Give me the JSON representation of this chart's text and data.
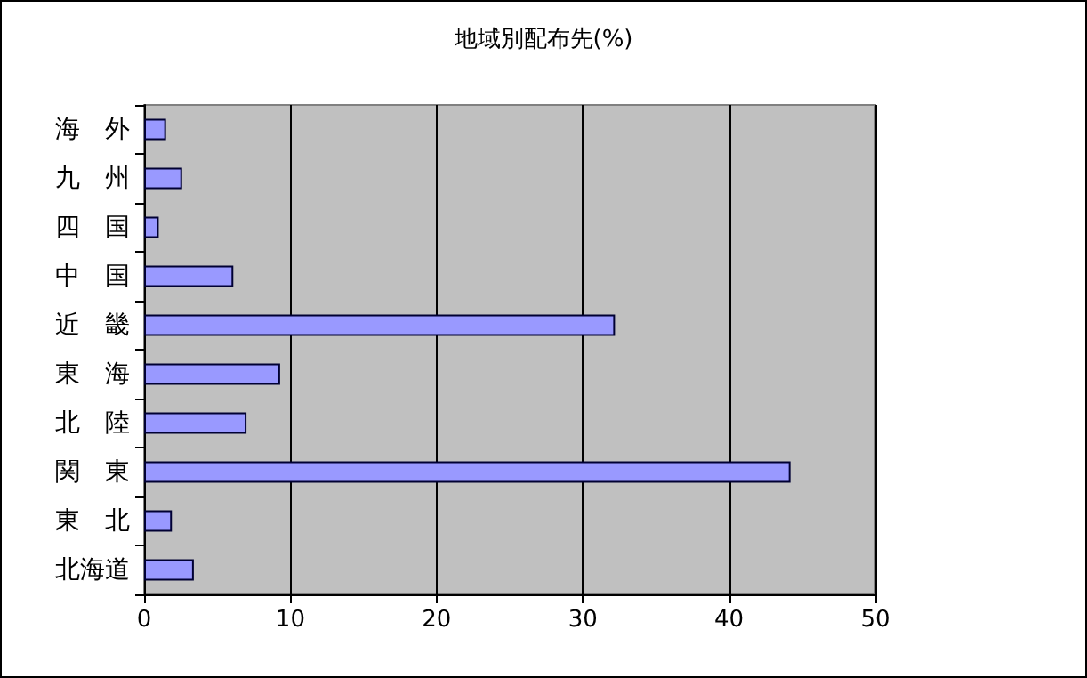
{
  "chart_data": {
    "type": "bar",
    "orientation": "horizontal",
    "title": "地域別配布先(%)",
    "categories": [
      "海　外",
      "九　州",
      "四　国",
      "中　国",
      "近　畿",
      "東　海",
      "北　陸",
      "関　東",
      "東　北",
      "北海道"
    ],
    "values": [
      1.5,
      2.6,
      1.0,
      6.1,
      32.2,
      9.3,
      7.0,
      44.2,
      1.9,
      3.4
    ],
    "color": "#9999ff",
    "xlim": [
      0,
      50
    ],
    "xticks": [
      0,
      10,
      20,
      30,
      40,
      50
    ],
    "grid": "x"
  }
}
